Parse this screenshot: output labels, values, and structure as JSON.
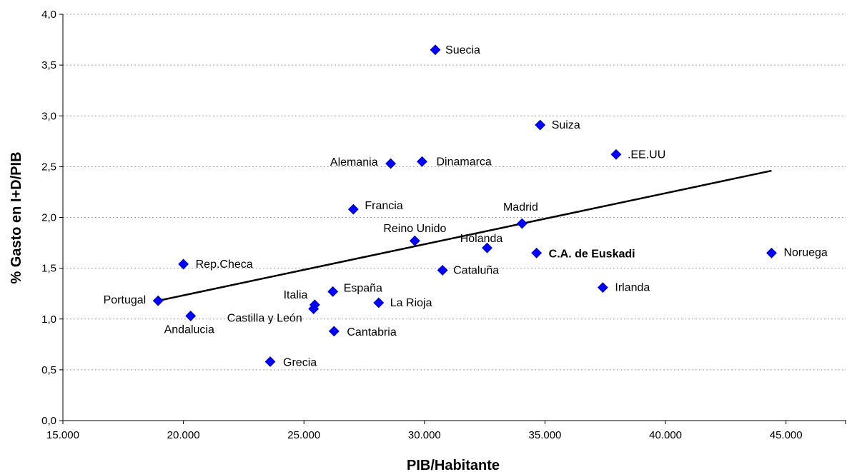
{
  "chart_data": {
    "type": "scatter",
    "title": "",
    "xlabel": "PIB/Habitante",
    "ylabel": "% Gasto en I+D/PIB",
    "xlim": [
      15000,
      47500
    ],
    "ylim": [
      0,
      4
    ],
    "x_ticks": [
      "15.000",
      "20.000",
      "25.000",
      "30.000",
      "35.000",
      "40.000",
      "45.000"
    ],
    "x_tick_values": [
      15000,
      20000,
      25000,
      30000,
      35000,
      40000,
      45000
    ],
    "y_ticks": [
      "0,0",
      "0,5",
      "1,0",
      "1,5",
      "2,0",
      "2,5",
      "3,0",
      "3,5",
      "4,0"
    ],
    "y_tick_values": [
      0,
      0.5,
      1,
      1.5,
      2,
      2.5,
      3,
      3.5,
      4
    ],
    "grid": "horizontal",
    "marker_color": "#0000ff",
    "points": [
      {
        "label": "Suecia",
        "x": 30450,
        "y": 3.65
      },
      {
        "label": "Suiza",
        "x": 34800,
        "y": 2.91
      },
      {
        "label": ".EE.UU",
        "x": 37950,
        "y": 2.62
      },
      {
        "label": "Alemania",
        "x": 28600,
        "y": 2.53
      },
      {
        "label": "Dinamarca",
        "x": 29900,
        "y": 2.55
      },
      {
        "label": "Francia",
        "x": 27050,
        "y": 2.08
      },
      {
        "label": "Madrid",
        "x": 34050,
        "y": 1.94
      },
      {
        "label": "Reino Unido",
        "x": 29600,
        "y": 1.77
      },
      {
        "label": "Holanda",
        "x": 32600,
        "y": 1.7
      },
      {
        "label": "C.A. de Euskadi",
        "x": 34650,
        "y": 1.65,
        "bold": true
      },
      {
        "label": "Noruega",
        "x": 44400,
        "y": 1.65
      },
      {
        "label": "Rep.Checa",
        "x": 20000,
        "y": 1.54
      },
      {
        "label": "Cataluña",
        "x": 30750,
        "y": 1.48
      },
      {
        "label": "Irlanda",
        "x": 37400,
        "y": 1.31
      },
      {
        "label": "España",
        "x": 26200,
        "y": 1.27
      },
      {
        "label": "Portugal",
        "x": 18950,
        "y": 1.18
      },
      {
        "label": "La Rioja",
        "x": 28100,
        "y": 1.16
      },
      {
        "label": "Italia",
        "x": 25450,
        "y": 1.14
      },
      {
        "label": "Castilla y León",
        "x": 25400,
        "y": 1.1
      },
      {
        "label": "Andalucia",
        "x": 20300,
        "y": 1.03
      },
      {
        "label": "Cantabria",
        "x": 26250,
        "y": 0.88
      },
      {
        "label": "Grecia",
        "x": 23600,
        "y": 0.58
      }
    ],
    "trendline": {
      "x": [
        18950,
        44400
      ],
      "y": [
        1.18,
        2.46
      ]
    }
  }
}
